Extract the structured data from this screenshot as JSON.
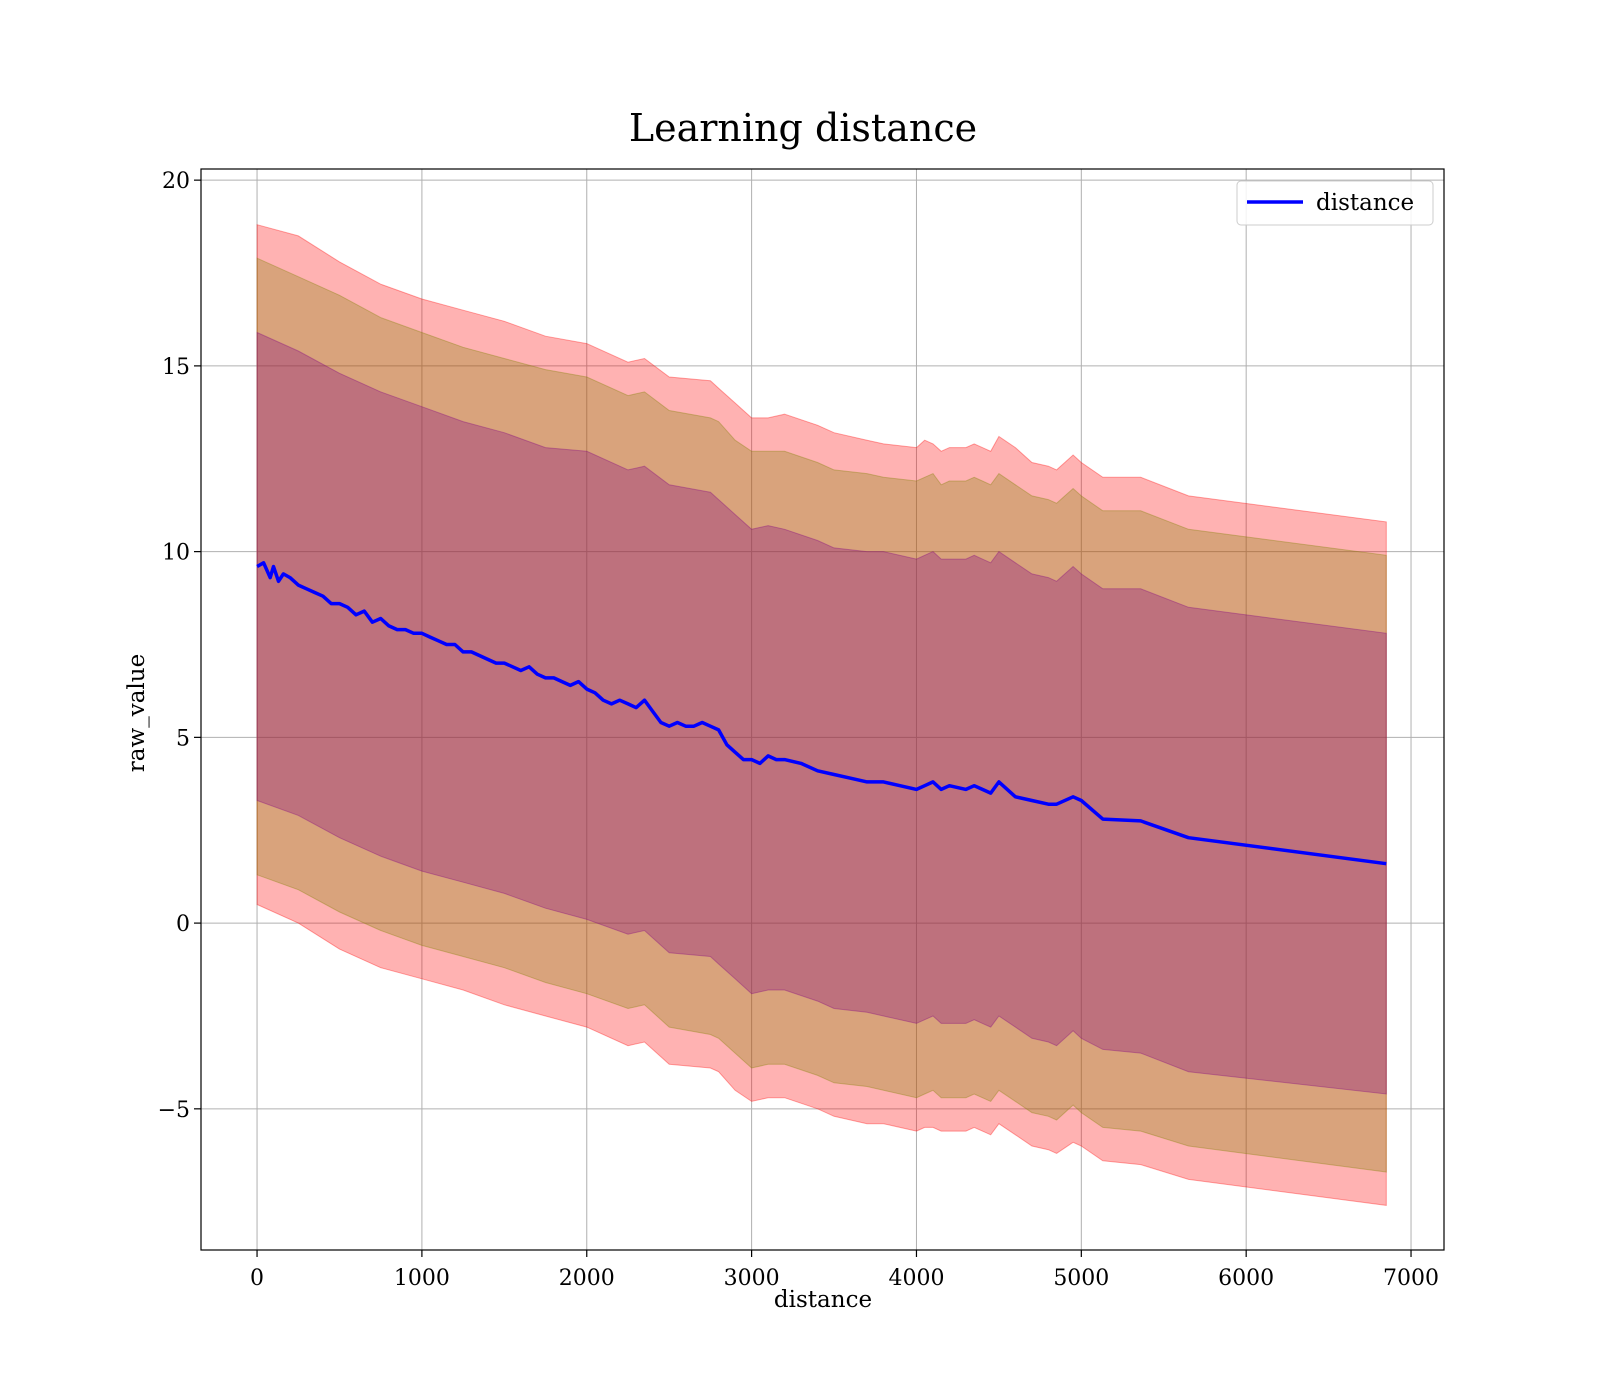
{
  "chart_data": {
    "type": "line",
    "title": "Learning distance",
    "xlabel": "distance",
    "ylabel": "raw_value",
    "xlim": [
      -340,
      7200
    ],
    "ylim": [
      -8.8,
      20.3
    ],
    "x_ticks": [
      0,
      1000,
      2000,
      3000,
      4000,
      5000,
      6000,
      7000
    ],
    "x_tick_labels": [
      "0",
      "1000",
      "2000",
      "3000",
      "4000",
      "5000",
      "6000",
      "7000"
    ],
    "y_ticks": [
      -5,
      0,
      5,
      10,
      15,
      20
    ],
    "y_tick_labels": [
      "−5",
      "0",
      "5",
      "10",
      "15",
      "20"
    ],
    "grid": true,
    "legend": {
      "position": "top-right",
      "entries": [
        "distance"
      ]
    },
    "colors": {
      "line": "#0000ff",
      "band_outer": "#ff0000",
      "band_middle": "#808000",
      "band_inner": "#800080",
      "grid": "#b0b0b0"
    },
    "series": [
      {
        "name": "distance",
        "x": [
          0,
          40,
          80,
          100,
          130,
          160,
          200,
          250,
          300,
          350,
          400,
          450,
          500,
          550,
          600,
          650,
          700,
          750,
          800,
          850,
          900,
          950,
          1000,
          1050,
          1100,
          1150,
          1200,
          1250,
          1300,
          1350,
          1400,
          1450,
          1500,
          1550,
          1600,
          1650,
          1700,
          1750,
          1800,
          1850,
          1900,
          1950,
          2000,
          2050,
          2100,
          2150,
          2200,
          2250,
          2300,
          2350,
          2400,
          2450,
          2500,
          2550,
          2600,
          2650,
          2700,
          2750,
          2800,
          2850,
          2900,
          2950,
          3000,
          3050,
          3100,
          3150,
          3200,
          3300,
          3400,
          3500,
          3600,
          3700,
          3800,
          3900,
          4000,
          4050,
          4100,
          4150,
          4200,
          4300,
          4350,
          4400,
          4450,
          4500,
          4600,
          4700,
          4800,
          4850,
          4950,
          5000,
          5130,
          5360,
          5650,
          6850
        ],
        "y": [
          9.6,
          9.7,
          9.3,
          9.6,
          9.2,
          9.4,
          9.3,
          9.1,
          9.0,
          8.9,
          8.8,
          8.6,
          8.6,
          8.5,
          8.3,
          8.4,
          8.1,
          8.2,
          8.0,
          7.9,
          7.9,
          7.8,
          7.8,
          7.7,
          7.6,
          7.5,
          7.5,
          7.3,
          7.3,
          7.2,
          7.1,
          7.0,
          7.0,
          6.9,
          6.8,
          6.9,
          6.7,
          6.6,
          6.6,
          6.5,
          6.4,
          6.5,
          6.3,
          6.2,
          6.0,
          5.9,
          6.0,
          5.9,
          5.8,
          6.0,
          5.7,
          5.4,
          5.3,
          5.4,
          5.3,
          5.3,
          5.4,
          5.3,
          5.2,
          4.8,
          4.6,
          4.4,
          4.4,
          4.3,
          4.5,
          4.4,
          4.4,
          4.3,
          4.1,
          4.0,
          3.9,
          3.8,
          3.8,
          3.7,
          3.6,
          3.7,
          3.8,
          3.6,
          3.7,
          3.6,
          3.7,
          3.6,
          3.5,
          3.8,
          3.4,
          3.3,
          3.2,
          3.2,
          3.4,
          3.3,
          2.8,
          2.75,
          2.3,
          1.6
        ]
      }
    ],
    "bands": [
      {
        "name": "outer",
        "x": [
          0,
          250,
          500,
          750,
          1000,
          1250,
          1500,
          1750,
          2000,
          2250,
          2350,
          2500,
          2750,
          2800,
          2900,
          3000,
          3100,
          3200,
          3400,
          3500,
          3700,
          3800,
          4000,
          4050,
          4100,
          4150,
          4200,
          4300,
          4350,
          4400,
          4450,
          4500,
          4600,
          4700,
          4800,
          4850,
          4950,
          5000,
          5130,
          5360,
          5650,
          6850
        ],
        "upper": [
          18.8,
          18.5,
          17.8,
          17.2,
          16.8,
          16.5,
          16.2,
          15.8,
          15.6,
          15.1,
          15.2,
          14.7,
          14.6,
          14.4,
          14.0,
          13.6,
          13.6,
          13.7,
          13.4,
          13.2,
          13.0,
          12.9,
          12.8,
          13.0,
          12.9,
          12.7,
          12.8,
          12.8,
          12.9,
          12.8,
          12.7,
          13.1,
          12.8,
          12.4,
          12.3,
          12.2,
          12.6,
          12.4,
          12.0,
          12.0,
          11.5,
          10.8
        ],
        "lower": [
          0.5,
          0.0,
          -0.7,
          -1.2,
          -1.5,
          -1.8,
          -2.2,
          -2.5,
          -2.8,
          -3.3,
          -3.2,
          -3.8,
          -3.9,
          -4.0,
          -4.5,
          -4.8,
          -4.7,
          -4.7,
          -5.0,
          -5.2,
          -5.4,
          -5.4,
          -5.6,
          -5.5,
          -5.5,
          -5.6,
          -5.6,
          -5.6,
          -5.5,
          -5.6,
          -5.7,
          -5.4,
          -5.7,
          -6.0,
          -6.1,
          -6.2,
          -5.9,
          -6.0,
          -6.4,
          -6.5,
          -6.9,
          -7.6
        ]
      },
      {
        "name": "middle",
        "x": [
          0,
          250,
          500,
          750,
          1000,
          1250,
          1500,
          1750,
          2000,
          2250,
          2350,
          2500,
          2750,
          2800,
          2900,
          3000,
          3100,
          3200,
          3400,
          3500,
          3700,
          3800,
          4000,
          4050,
          4100,
          4150,
          4200,
          4300,
          4350,
          4400,
          4450,
          4500,
          4600,
          4700,
          4800,
          4850,
          4950,
          5000,
          5130,
          5360,
          5650,
          6850
        ],
        "upper": [
          17.9,
          17.4,
          16.9,
          16.3,
          15.9,
          15.5,
          15.2,
          14.9,
          14.7,
          14.2,
          14.3,
          13.8,
          13.6,
          13.5,
          13.0,
          12.7,
          12.7,
          12.7,
          12.4,
          12.2,
          12.1,
          12.0,
          11.9,
          12.0,
          12.1,
          11.8,
          11.9,
          11.9,
          12.0,
          11.9,
          11.8,
          12.1,
          11.8,
          11.5,
          11.4,
          11.3,
          11.7,
          11.5,
          11.1,
          11.1,
          10.6,
          9.9
        ],
        "lower": [
          1.3,
          0.9,
          0.3,
          -0.2,
          -0.6,
          -0.9,
          -1.2,
          -1.6,
          -1.9,
          -2.3,
          -2.2,
          -2.8,
          -3.0,
          -3.1,
          -3.5,
          -3.9,
          -3.8,
          -3.8,
          -4.1,
          -4.3,
          -4.4,
          -4.5,
          -4.7,
          -4.6,
          -4.5,
          -4.7,
          -4.7,
          -4.7,
          -4.6,
          -4.7,
          -4.8,
          -4.5,
          -4.8,
          -5.1,
          -5.2,
          -5.3,
          -4.9,
          -5.1,
          -5.5,
          -5.6,
          -6.0,
          -6.7
        ]
      },
      {
        "name": "inner",
        "x": [
          0,
          250,
          500,
          750,
          1000,
          1250,
          1500,
          1750,
          2000,
          2250,
          2350,
          2500,
          2750,
          2800,
          2900,
          3000,
          3100,
          3200,
          3400,
          3500,
          3700,
          3800,
          4000,
          4050,
          4100,
          4150,
          4200,
          4300,
          4350,
          4400,
          4450,
          4500,
          4600,
          4700,
          4800,
          4850,
          4950,
          5000,
          5130,
          5360,
          5650,
          6850
        ],
        "upper": [
          15.9,
          15.4,
          14.8,
          14.3,
          13.9,
          13.5,
          13.2,
          12.8,
          12.7,
          12.2,
          12.3,
          11.8,
          11.6,
          11.4,
          11.0,
          10.6,
          10.7,
          10.6,
          10.3,
          10.1,
          10.0,
          10.0,
          9.8,
          9.9,
          10.0,
          9.8,
          9.8,
          9.8,
          9.9,
          9.8,
          9.7,
          10.0,
          9.7,
          9.4,
          9.3,
          9.2,
          9.6,
          9.4,
          9.0,
          9.0,
          8.5,
          7.8
        ],
        "lower": [
          3.3,
          2.9,
          2.3,
          1.8,
          1.4,
          1.1,
          0.8,
          0.4,
          0.1,
          -0.3,
          -0.2,
          -0.8,
          -0.9,
          -1.1,
          -1.5,
          -1.9,
          -1.8,
          -1.8,
          -2.1,
          -2.3,
          -2.4,
          -2.5,
          -2.7,
          -2.6,
          -2.5,
          -2.7,
          -2.7,
          -2.7,
          -2.6,
          -2.7,
          -2.8,
          -2.5,
          -2.8,
          -3.1,
          -3.2,
          -3.3,
          -2.9,
          -3.1,
          -3.4,
          -3.5,
          -4.0,
          -4.6
        ]
      }
    ]
  }
}
